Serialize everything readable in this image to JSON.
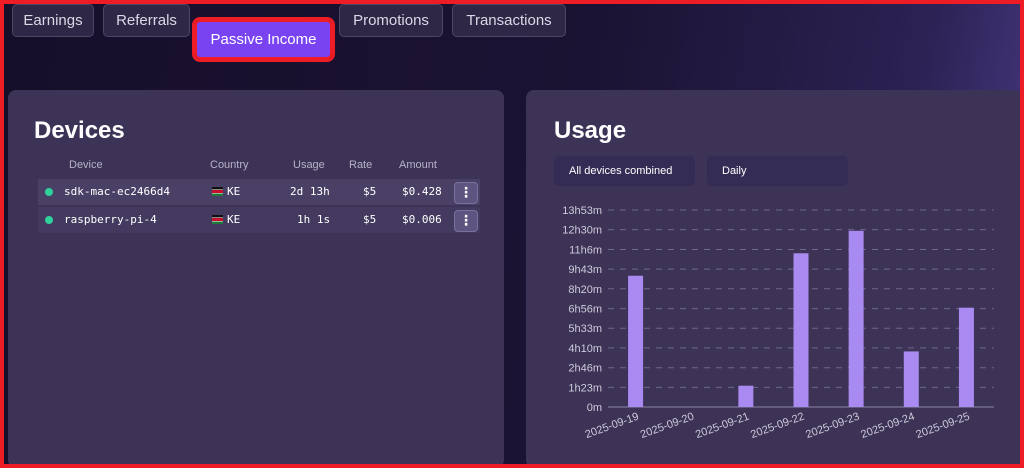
{
  "tabs": [
    {
      "label": "Earnings"
    },
    {
      "label": "Referrals"
    },
    {
      "label": "Passive Income",
      "active": true
    },
    {
      "label": "Promotions"
    },
    {
      "label": "Transactions"
    }
  ],
  "devices": {
    "title": "Devices",
    "columns": [
      "Device",
      "Country",
      "Usage",
      "Rate",
      "Amount"
    ],
    "rows": [
      {
        "status": "online",
        "device": "sdk-mac-ec2466d4",
        "country": "KE",
        "usage": "2d 13h",
        "rate": "$5",
        "amount": "$0.428"
      },
      {
        "status": "online",
        "device": "raspberry-pi-4",
        "country": "KE",
        "usage": "1h 1s",
        "rate": "$5",
        "amount": "$0.006"
      }
    ]
  },
  "usage": {
    "title": "Usage",
    "device_filter": "All devices combined",
    "period_filter": "Daily"
  },
  "chart_data": {
    "type": "bar",
    "categories": [
      "2025-09-19",
      "2025-09-20",
      "2025-09-21",
      "2025-09-22",
      "2025-09-23",
      "2025-09-24",
      "2025-09-25"
    ],
    "values_minutes": [
      555,
      0,
      90,
      650,
      745,
      235,
      420
    ],
    "y_tick_labels": [
      "0m",
      "1h23m",
      "2h46m",
      "4h10m",
      "5h33m",
      "6h56m",
      "8h20m",
      "9h43m",
      "11h6m",
      "12h30m",
      "13h53m"
    ],
    "y_tick_minutes": [
      0,
      83,
      166,
      250,
      333,
      416,
      500,
      583,
      666,
      750,
      833
    ],
    "ylim_minutes": [
      0,
      833
    ],
    "grid": true,
    "bar_color": "#a98af0",
    "title": "",
    "xlabel": "",
    "ylabel": ""
  }
}
